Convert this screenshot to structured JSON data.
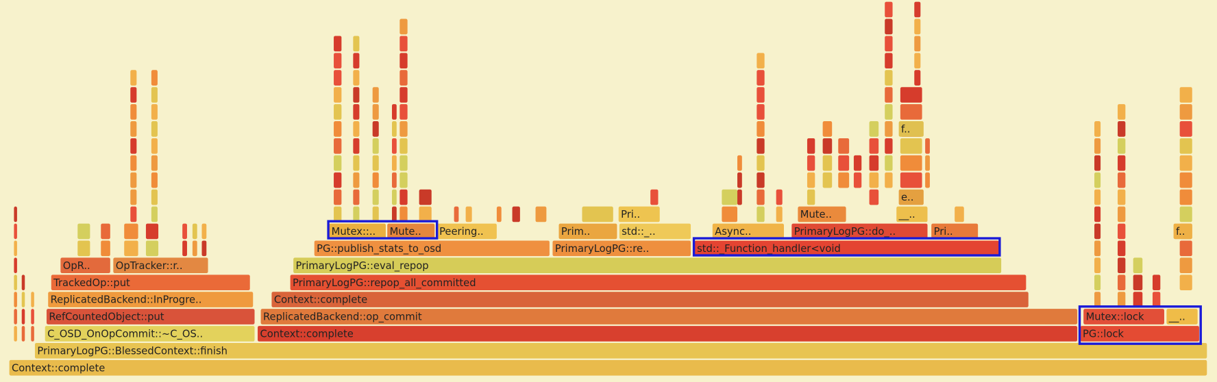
{
  "frames": [
    "Context::complete",
    "PrimaryLogPG::BlessedContext::finish",
    "C_OSD_OnOpCommit::~C_OS..",
    "Context::complete",
    "PG::lock",
    "RefCountedObject::put",
    "ReplicatedBackend::op_commit",
    "Mutex::lock",
    "__..",
    "ReplicatedBackend::InProgre..",
    "Context::complete",
    "TrackedOp::put",
    "PrimaryLogPG::repop_all_committed",
    "OpR..",
    "OpTracker::r..",
    "PrimaryLogPG::eval_repop",
    "PG::publish_stats_to_osd",
    "PrimaryLogPG::re..",
    "std::_Function_handler<void",
    "Mutex::..",
    "Mute..",
    "Peering..",
    "Prim..",
    "std::_..",
    "Async..",
    "PrimaryLogPG::do_..",
    "Pri..",
    "Pri..",
    "Mute..",
    "__..",
    "e..",
    "f..",
    "f.."
  ]
}
